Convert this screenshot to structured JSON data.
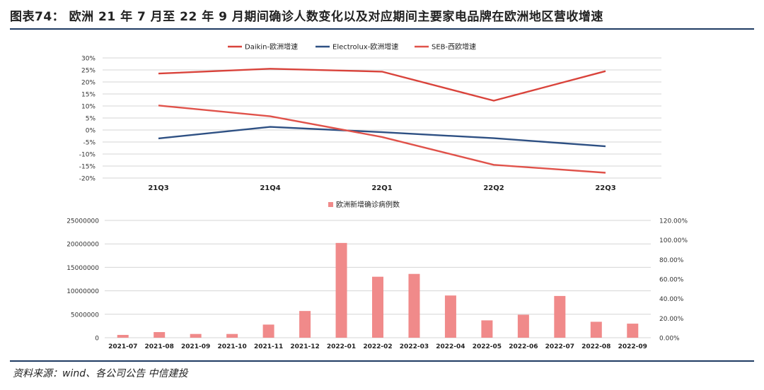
{
  "figure": {
    "title": "图表74：  欧洲 21 年 7 月至 22 年 9 月期间确诊人数变化以及对应期间主要家电品牌在欧洲地区营收增速",
    "source": "资料来源：wind、各公司公告   中信建投"
  },
  "chart_data": [
    {
      "type": "line",
      "categories": [
        "21Q3",
        "21Q4",
        "22Q1",
        "22Q2",
        "22Q3"
      ],
      "series": [
        {
          "name": "Daikin-欧洲增速",
          "color": "#d9433b",
          "values": [
            23.5,
            25.5,
            24.3,
            12.2,
            24.5
          ]
        },
        {
          "name": "Electrolux-欧洲增速",
          "color": "#2e5083",
          "values": [
            -3.5,
            1.3,
            -0.9,
            -3.4,
            -6.8
          ]
        },
        {
          "name": "SEB-西欧增速",
          "color": "#e0524a",
          "values": [
            10.2,
            5.7,
            -2.9,
            -14.5,
            -17.8
          ]
        }
      ],
      "ylim": [
        -20,
        30
      ],
      "yticks": [
        "-20%",
        "-15%",
        "-10%",
        "-5%",
        "0%",
        "5%",
        "10%",
        "15%",
        "20%",
        "25%",
        "30%"
      ],
      "grid": true,
      "legend": "top"
    },
    {
      "type": "bar",
      "legend_label": "欧洲新增确诊病例数",
      "bar_color": "#f08a8a",
      "categories": [
        "2021-07",
        "2021-08",
        "2021-09",
        "2021-10",
        "2021-11",
        "2021-12",
        "2022-01",
        "2022-02",
        "2022-03",
        "2022-04",
        "2022-05",
        "2022-06",
        "2022-07",
        "2022-08",
        "2022-09"
      ],
      "values": [
        600000,
        1200000,
        800000,
        800000,
        2800000,
        5700000,
        20200000,
        13000000,
        13600000,
        9000000,
        3700000,
        4900000,
        8900000,
        3400000,
        3000000
      ],
      "ylim": [
        0,
        25000000
      ],
      "yticks": [
        "0",
        "5000000",
        "10000000",
        "15000000",
        "20000000",
        "25000000"
      ],
      "y2lim": [
        0,
        120
      ],
      "y2ticks": [
        "0.00%",
        "20.00%",
        "40.00%",
        "60.00%",
        "80.00%",
        "100.00%",
        "120.00%"
      ],
      "grid": true,
      "legend": "top"
    }
  ]
}
